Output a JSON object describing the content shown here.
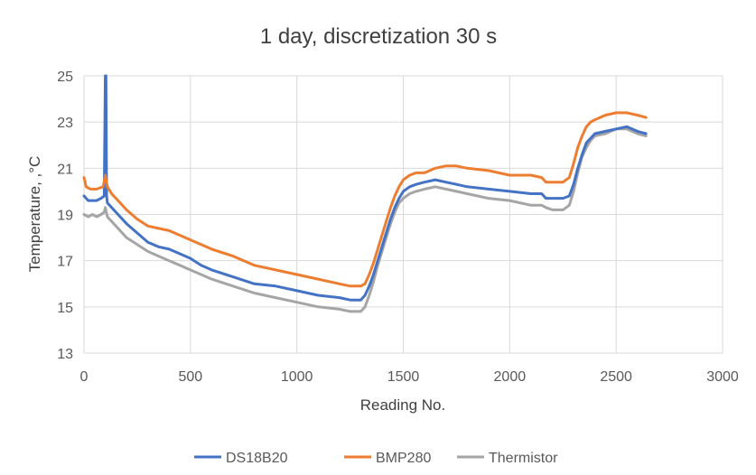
{
  "chart_data": {
    "type": "line",
    "title": "1 day, discretization 30 s",
    "xlabel": "Reading No.",
    "ylabel": "Temperature, ,°C",
    "xlim": [
      0,
      3000
    ],
    "ylim": [
      13,
      25
    ],
    "xticks": [
      0,
      500,
      1000,
      1500,
      2000,
      2500,
      3000
    ],
    "yticks": [
      13,
      15,
      17,
      19,
      21,
      23,
      25
    ],
    "grid": true,
    "legend_position": "bottom",
    "series": [
      {
        "name": "DS18B20",
        "color": "#4472c4",
        "x": [
          0,
          20,
          40,
          60,
          80,
          95,
          100,
          103,
          106,
          110,
          130,
          160,
          200,
          250,
          300,
          350,
          400,
          450,
          500,
          550,
          600,
          700,
          800,
          900,
          1000,
          1100,
          1200,
          1250,
          1300,
          1320,
          1340,
          1360,
          1380,
          1400,
          1420,
          1440,
          1460,
          1480,
          1500,
          1530,
          1560,
          1600,
          1650,
          1700,
          1750,
          1800,
          1900,
          2000,
          2100,
          2150,
          2170,
          2200,
          2250,
          2280,
          2300,
          2320,
          2340,
          2360,
          2380,
          2400,
          2450,
          2500,
          2550,
          2600,
          2640
        ],
        "y": [
          19.8,
          19.6,
          19.6,
          19.6,
          19.7,
          19.8,
          25.0,
          25.0,
          19.8,
          19.5,
          19.3,
          19.0,
          18.6,
          18.2,
          17.8,
          17.6,
          17.5,
          17.3,
          17.1,
          16.8,
          16.6,
          16.3,
          16.0,
          15.9,
          15.7,
          15.5,
          15.4,
          15.3,
          15.3,
          15.5,
          15.9,
          16.4,
          17.0,
          17.6,
          18.2,
          18.8,
          19.3,
          19.7,
          20.0,
          20.2,
          20.3,
          20.4,
          20.5,
          20.4,
          20.3,
          20.2,
          20.1,
          20.0,
          19.9,
          19.9,
          19.7,
          19.7,
          19.7,
          19.8,
          20.3,
          21.0,
          21.6,
          22.1,
          22.3,
          22.5,
          22.6,
          22.7,
          22.8,
          22.6,
          22.5
        ]
      },
      {
        "name": "BMP280",
        "color": "#ed7d31",
        "x": [
          0,
          10,
          30,
          60,
          90,
          100,
          104,
          110,
          130,
          160,
          200,
          250,
          300,
          350,
          400,
          450,
          500,
          550,
          600,
          700,
          800,
          900,
          1000,
          1100,
          1200,
          1250,
          1300,
          1320,
          1340,
          1360,
          1380,
          1400,
          1420,
          1440,
          1460,
          1480,
          1500,
          1530,
          1560,
          1600,
          1650,
          1700,
          1750,
          1800,
          1900,
          2000,
          2100,
          2150,
          2170,
          2200,
          2250,
          2280,
          2300,
          2320,
          2340,
          2360,
          2380,
          2400,
          2450,
          2500,
          2550,
          2600,
          2640
        ],
        "y": [
          20.6,
          20.2,
          20.1,
          20.1,
          20.2,
          20.7,
          20.5,
          20.2,
          19.9,
          19.6,
          19.2,
          18.8,
          18.5,
          18.4,
          18.3,
          18.1,
          17.9,
          17.7,
          17.5,
          17.2,
          16.8,
          16.6,
          16.4,
          16.2,
          16.0,
          15.9,
          15.9,
          16.0,
          16.4,
          16.9,
          17.5,
          18.1,
          18.7,
          19.3,
          19.8,
          20.2,
          20.5,
          20.7,
          20.8,
          20.8,
          21.0,
          21.1,
          21.1,
          21.0,
          20.9,
          20.7,
          20.7,
          20.6,
          20.4,
          20.4,
          20.4,
          20.6,
          21.2,
          21.9,
          22.4,
          22.8,
          23.0,
          23.1,
          23.3,
          23.4,
          23.4,
          23.3,
          23.2
        ]
      },
      {
        "name": "Thermistor",
        "color": "#a5a5a5",
        "x": [
          0,
          20,
          40,
          60,
          80,
          95,
          100,
          110,
          130,
          160,
          200,
          250,
          300,
          350,
          400,
          450,
          500,
          550,
          600,
          700,
          800,
          900,
          1000,
          1100,
          1200,
          1250,
          1300,
          1320,
          1340,
          1360,
          1380,
          1400,
          1420,
          1440,
          1460,
          1480,
          1500,
          1530,
          1560,
          1600,
          1650,
          1700,
          1750,
          1800,
          1900,
          2000,
          2100,
          2150,
          2170,
          2200,
          2250,
          2280,
          2300,
          2320,
          2340,
          2360,
          2380,
          2400,
          2450,
          2500,
          2550,
          2600,
          2640
        ],
        "y": [
          19.0,
          18.9,
          19.0,
          18.9,
          19.0,
          19.1,
          19.3,
          18.9,
          18.7,
          18.4,
          18.0,
          17.7,
          17.4,
          17.2,
          17.0,
          16.8,
          16.6,
          16.4,
          16.2,
          15.9,
          15.6,
          15.4,
          15.2,
          15.0,
          14.9,
          14.8,
          14.8,
          15.0,
          15.5,
          16.1,
          16.8,
          17.4,
          18.0,
          18.6,
          19.1,
          19.5,
          19.7,
          19.9,
          20.0,
          20.1,
          20.2,
          20.1,
          20.0,
          19.9,
          19.7,
          19.6,
          19.4,
          19.4,
          19.3,
          19.2,
          19.2,
          19.4,
          20.0,
          20.8,
          21.5,
          21.9,
          22.2,
          22.4,
          22.5,
          22.7,
          22.7,
          22.5,
          22.4
        ]
      }
    ]
  }
}
